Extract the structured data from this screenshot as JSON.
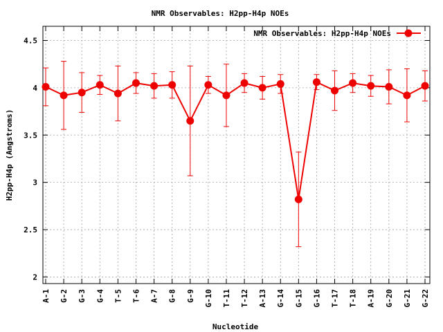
{
  "chart_data": {
    "type": "line",
    "title": "NMR Observables: H2pp-H4p NOEs",
    "xlabel": "Nucleotide",
    "ylabel": "H2pp-H4p (Angstroms)",
    "ylim": [
      1.93,
      4.65
    ],
    "yticks": [
      "2",
      "2.5",
      "3",
      "3.5",
      "4",
      "4.5"
    ],
    "categories": [
      "A-1",
      "G-2",
      "G-3",
      "G-4",
      "T-5",
      "T-6",
      "A-7",
      "G-8",
      "G-9",
      "G-10",
      "T-11",
      "T-12",
      "A-13",
      "G-14",
      "G-15",
      "G-16",
      "T-17",
      "T-18",
      "A-19",
      "G-20",
      "G-21",
      "G-22"
    ],
    "grid": true,
    "legend_position": "top-right",
    "series": [
      {
        "name": "NMR Observables: H2pp-H4p NOEs",
        "color": "#ee0000",
        "values": [
          4.01,
          3.92,
          3.95,
          4.03,
          3.94,
          4.05,
          4.02,
          4.03,
          3.65,
          4.03,
          3.92,
          4.05,
          4.0,
          4.04,
          2.82,
          4.06,
          3.97,
          4.05,
          4.02,
          4.01,
          3.92,
          4.02
        ],
        "errors": [
          0.2,
          0.36,
          0.21,
          0.1,
          0.29,
          0.11,
          0.13,
          0.14,
          0.58,
          0.09,
          0.33,
          0.1,
          0.12,
          0.1,
          0.5,
          0.08,
          0.21,
          0.1,
          0.11,
          0.18,
          0.28,
          0.16
        ]
      }
    ]
  }
}
